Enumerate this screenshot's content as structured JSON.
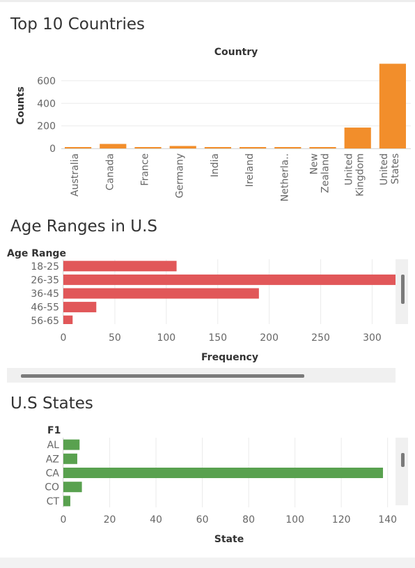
{
  "section1": {
    "title": "Top 10 Countries"
  },
  "section2": {
    "title": "Age Ranges in U.S"
  },
  "section3": {
    "title": "U.S States"
  },
  "colors": {
    "countries": "#f28e2b",
    "ages": "#e15759",
    "states": "#59a14f"
  },
  "chart_data": [
    {
      "type": "bar",
      "title": "Top 10 Countries",
      "column_header": "Country",
      "ylabel": "Counts",
      "categories": [
        "Australia",
        "Canada",
        "France",
        "Germany",
        "India",
        "Ireland",
        "Netherla..",
        "New Zealand",
        "United Kingdom",
        "United States"
      ],
      "category_lines": [
        [
          "Australia"
        ],
        [
          "Canada"
        ],
        [
          "France"
        ],
        [
          "Germany"
        ],
        [
          "India"
        ],
        [
          "Ireland"
        ],
        [
          "Netherla.."
        ],
        [
          "New",
          "Zealand"
        ],
        [
          "United",
          "Kingdom"
        ],
        [
          "United",
          "States"
        ]
      ],
      "values": [
        6,
        40,
        4,
        22,
        5,
        11,
        12,
        3,
        185,
        751
      ],
      "yticks": [
        0,
        200,
        400,
        600
      ],
      "ylim": [
        0,
        760
      ],
      "grid": true
    },
    {
      "type": "bar",
      "orientation": "horizontal",
      "title": "Age Ranges in U.S",
      "row_header": "Age Range",
      "xlabel": "Frequency",
      "categories": [
        "18-25",
        "26-35",
        "36-45",
        "46-55",
        "56-65"
      ],
      "values": [
        110,
        324,
        190,
        32,
        9
      ],
      "xticks": [
        0,
        50,
        100,
        150,
        200,
        250,
        300
      ],
      "xlim": [
        0,
        320
      ],
      "grid": true
    },
    {
      "type": "bar",
      "orientation": "horizontal",
      "title": "U.S States",
      "row_header": "F1",
      "xlabel": "State",
      "categories": [
        "AL",
        "AZ",
        "CA",
        "CO",
        "CT"
      ],
      "values": [
        7,
        6,
        138,
        8,
        3
      ],
      "xticks": [
        0,
        20,
        40,
        60,
        80,
        100,
        120,
        140
      ],
      "xlim": [
        0,
        141
      ],
      "grid": true
    }
  ]
}
